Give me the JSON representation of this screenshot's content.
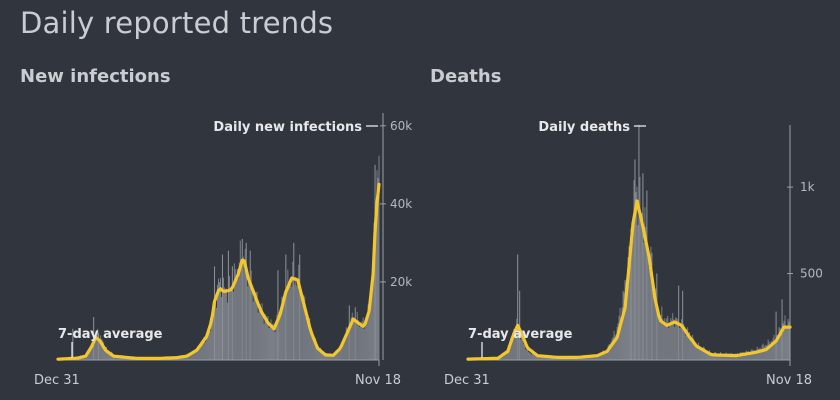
{
  "page_title": "Daily reported trends",
  "colors": {
    "background": "#31353d",
    "bar": "#7b7f86",
    "bar_spike": "#8e9299",
    "average_line": "#f2c72e",
    "axis": "#9a9ea5",
    "text": "#c9ccd1"
  },
  "chart_data": [
    {
      "type": "bar",
      "title": "New infections",
      "x_range": [
        "Dec 31",
        "Nov 18"
      ],
      "xtick_labels": [
        "Dec 31",
        "Nov 18"
      ],
      "ylim": [
        0,
        62000
      ],
      "yticks": [
        20000,
        40000,
        60000
      ],
      "ytick_labels": [
        "20k",
        "40k",
        "60k"
      ],
      "y_axis_side": "right",
      "legend_placement": "none",
      "grid": false,
      "annotations": {
        "bars_label": "Daily new infections",
        "average_label": "7-day average"
      },
      "series": [
        {
          "name": "Daily new infections",
          "kind": "bar",
          "keyframes": [
            [
              0,
              200
            ],
            [
              20,
              800
            ],
            [
              30,
              1500
            ],
            [
              36,
              4200
            ],
            [
              40,
              7000
            ],
            [
              44,
              5200
            ],
            [
              50,
              2500
            ],
            [
              60,
              900
            ],
            [
              80,
              400
            ],
            [
              100,
              400
            ],
            [
              120,
              600
            ],
            [
              130,
              1000
            ],
            [
              140,
              2500
            ],
            [
              150,
              6000
            ],
            [
              155,
              10000
            ],
            [
              160,
              17000
            ],
            [
              163,
              20000
            ],
            [
              167,
              18000
            ],
            [
              175,
              18500
            ],
            [
              182,
              24000
            ],
            [
              187,
              27000
            ],
            [
              192,
              21000
            ],
            [
              198,
              17000
            ],
            [
              205,
              13000
            ],
            [
              212,
              10000
            ],
            [
              218,
              8500
            ],
            [
              224,
              12000
            ],
            [
              230,
              18000
            ],
            [
              236,
              22000
            ],
            [
              242,
              21000
            ],
            [
              248,
              15000
            ],
            [
              255,
              8000
            ],
            [
              262,
              3500
            ],
            [
              270,
              1600
            ],
            [
              278,
              1400
            ],
            [
              285,
              3500
            ],
            [
              292,
              7500
            ],
            [
              298,
              11000
            ],
            [
              303,
              10000
            ],
            [
              309,
              9000
            ],
            [
              314,
              13000
            ],
            [
              318,
              24000
            ],
            [
              320,
              36000
            ],
            [
              322,
              45000
            ],
            [
              324,
              48000
            ]
          ],
          "spikes": [
            [
              15,
              8000
            ],
            [
              36,
              11000
            ],
            [
              41,
              7000
            ],
            [
              158,
              24000
            ],
            [
              166,
              27000
            ],
            [
              172,
              28000
            ],
            [
              176,
              24000
            ],
            [
              186,
              31000
            ],
            [
              190,
              30000
            ],
            [
              194,
              28000
            ],
            [
              222,
              23000
            ],
            [
              230,
              27000
            ],
            [
              238,
              30000
            ],
            [
              244,
              27000
            ],
            [
              294,
              14000
            ],
            [
              300,
              13500
            ],
            [
              320,
              50000
            ]
          ]
        },
        {
          "name": "7-day average",
          "kind": "line",
          "keyframes": [
            [
              0,
              200
            ],
            [
              20,
              500
            ],
            [
              28,
              1000
            ],
            [
              34,
              3500
            ],
            [
              38,
              5800
            ],
            [
              42,
              5000
            ],
            [
              48,
              2500
            ],
            [
              56,
              1000
            ],
            [
              80,
              400
            ],
            [
              100,
              400
            ],
            [
              120,
              600
            ],
            [
              130,
              1000
            ],
            [
              140,
              2500
            ],
            [
              150,
              6000
            ],
            [
              155,
              10000
            ],
            [
              158,
              15000
            ],
            [
              163,
              18500
            ],
            [
              167,
              17500
            ],
            [
              175,
              18000
            ],
            [
              182,
              22000
            ],
            [
              187,
              26500
            ],
            [
              192,
              21000
            ],
            [
              198,
              17000
            ],
            [
              205,
              12500
            ],
            [
              212,
              9500
            ],
            [
              218,
              8000
            ],
            [
              224,
              11500
            ],
            [
              230,
              17500
            ],
            [
              236,
              21000
            ],
            [
              242,
              20500
            ],
            [
              248,
              14500
            ],
            [
              255,
              7500
            ],
            [
              262,
              3000
            ],
            [
              270,
              1300
            ],
            [
              278,
              1200
            ],
            [
              285,
              3000
            ],
            [
              292,
              7000
            ],
            [
              298,
              10500
            ],
            [
              303,
              9500
            ],
            [
              309,
              8500
            ],
            [
              314,
              12500
            ],
            [
              318,
              22000
            ],
            [
              321,
              38000
            ],
            [
              324,
              45000
            ]
          ]
        }
      ]
    },
    {
      "type": "bar",
      "title": "Deaths",
      "x_range": [
        "Dec 31",
        "Nov 18"
      ],
      "xtick_labels": [
        "Dec 31",
        "Nov 18"
      ],
      "ylim": [
        0,
        1330
      ],
      "yticks": [
        500,
        1000
      ],
      "ytick_labels": [
        "500",
        "1k"
      ],
      "y_axis_side": "right",
      "legend_placement": "none",
      "grid": false,
      "annotations": {
        "bars_label": "Daily deaths",
        "average_label": "7-day average"
      },
      "series": [
        {
          "name": "Daily deaths",
          "kind": "bar",
          "keyframes": [
            [
              0,
              5
            ],
            [
              30,
              10
            ],
            [
              40,
              60
            ],
            [
              46,
              170
            ],
            [
              50,
              220
            ],
            [
              54,
              120
            ],
            [
              60,
              50
            ],
            [
              70,
              20
            ],
            [
              90,
              15
            ],
            [
              110,
              15
            ],
            [
              130,
              25
            ],
            [
              140,
              60
            ],
            [
              150,
              180
            ],
            [
              158,
              420
            ],
            [
              162,
              600
            ],
            [
              166,
              850
            ],
            [
              170,
              1000
            ],
            [
              175,
              840
            ],
            [
              182,
              620
            ],
            [
              188,
              380
            ],
            [
              193,
              270
            ],
            [
              200,
              220
            ],
            [
              208,
              240
            ],
            [
              215,
              210
            ],
            [
              222,
              160
            ],
            [
              230,
              90
            ],
            [
              245,
              40
            ],
            [
              270,
              35
            ],
            [
              290,
              60
            ],
            [
              300,
              90
            ],
            [
              310,
              130
            ],
            [
              318,
              220
            ]
          ],
          "spikes": [
            [
              50,
              610
            ],
            [
              52,
              400
            ],
            [
              164,
              760
            ],
            [
              168,
              1160
            ],
            [
              172,
              1360
            ],
            [
              176,
              1080
            ],
            [
              180,
              980
            ],
            [
              185,
              620
            ],
            [
              190,
              500
            ],
            [
              212,
              430
            ],
            [
              216,
              400
            ],
            [
              310,
              280
            ],
            [
              316,
              350
            ]
          ]
        },
        {
          "name": "7-day average",
          "kind": "line",
          "keyframes": [
            [
              0,
              5
            ],
            [
              30,
              10
            ],
            [
              40,
              50
            ],
            [
              46,
              150
            ],
            [
              50,
              200
            ],
            [
              54,
              150
            ],
            [
              60,
              70
            ],
            [
              70,
              25
            ],
            [
              90,
              15
            ],
            [
              110,
              15
            ],
            [
              130,
              25
            ],
            [
              140,
              50
            ],
            [
              150,
              130
            ],
            [
              158,
              300
            ],
            [
              162,
              540
            ],
            [
              166,
              790
            ],
            [
              170,
              920
            ],
            [
              175,
              800
            ],
            [
              182,
              600
            ],
            [
              188,
              360
            ],
            [
              193,
              230
            ],
            [
              200,
              200
            ],
            [
              208,
              220
            ],
            [
              215,
              200
            ],
            [
              222,
              140
            ],
            [
              230,
              80
            ],
            [
              245,
              30
            ],
            [
              270,
              25
            ],
            [
              290,
              45
            ],
            [
              300,
              60
            ],
            [
              310,
              110
            ],
            [
              318,
              190
            ]
          ]
        }
      ]
    }
  ]
}
